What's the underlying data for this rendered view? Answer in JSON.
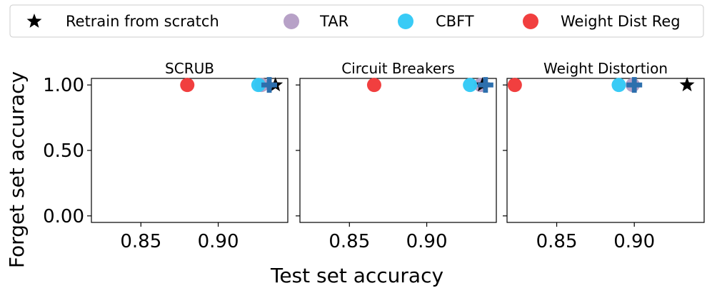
{
  "chart_data": [
    {
      "type": "scatter",
      "title": "SCRUB",
      "xticks": [
        0.85,
        0.9
      ],
      "xtick_labels": [
        "0.85",
        "0.90"
      ],
      "yticks": [
        0.0,
        0.5,
        1.0
      ],
      "ytick_labels": [
        "0.00",
        "0.50",
        "1.00"
      ],
      "xlim": [
        0.818,
        0.945
      ],
      "ylim": [
        -0.05,
        1.05
      ],
      "series": [
        {
          "name": "Retrain from scratch",
          "marker": "star",
          "color": "#000000",
          "points": [
            {
              "x": 0.937,
              "y": 1.0
            }
          ]
        },
        {
          "name": "TAR",
          "marker": "circle",
          "color": "#b39cc4",
          "points": [
            {
              "x": 0.928,
              "y": 1.0
            }
          ]
        },
        {
          "name": "CBFT",
          "marker": "circle",
          "color": "#2ec8f5",
          "points": [
            {
              "x": 0.926,
              "y": 1.0
            }
          ]
        },
        {
          "name": "Weight Dist Reg",
          "marker": "circle",
          "color": "#f03535",
          "points": [
            {
              "x": 0.88,
              "y": 1.0
            }
          ]
        },
        {
          "marker": "plus",
          "color": "#2d6fad",
          "points": [
            {
              "x": 0.933,
              "y": 1.0
            }
          ]
        }
      ]
    },
    {
      "type": "scatter",
      "title": "Circuit Breakers",
      "xticks": [
        0.85,
        0.9
      ],
      "xtick_labels": [
        "0.85",
        "0.90"
      ],
      "yticks": [
        0.0,
        0.5,
        1.0
      ],
      "ytick_labels": [
        "",
        "",
        ""
      ],
      "xlim": [
        0.818,
        0.945
      ],
      "ylim": [
        -0.05,
        1.05
      ],
      "series": [
        {
          "name": "TAR",
          "marker": "circle",
          "color": "#b39cc4",
          "points": [
            {
              "x": 0.935,
              "y": 1.0
            }
          ]
        },
        {
          "name": "Retrain from scratch",
          "marker": "star",
          "color": "#000000",
          "points": [
            {
              "x": 0.936,
              "y": 1.0
            }
          ]
        },
        {
          "name": "CBFT",
          "marker": "circle",
          "color": "#2ec8f5",
          "points": [
            {
              "x": 0.928,
              "y": 1.0
            }
          ]
        },
        {
          "name": "Weight Dist Reg",
          "marker": "circle",
          "color": "#f03535",
          "points": [
            {
              "x": 0.866,
              "y": 1.0
            }
          ]
        },
        {
          "marker": "plus",
          "color": "#2d6fad",
          "points": [
            {
              "x": 0.938,
              "y": 1.0
            }
          ]
        }
      ]
    },
    {
      "type": "scatter",
      "title": "Weight Distortion",
      "xticks": [
        0.85,
        0.9
      ],
      "xtick_labels": [
        "0.85",
        "0.90"
      ],
      "yticks": [
        0.0,
        0.5,
        1.0
      ],
      "ytick_labels": [
        "",
        "",
        ""
      ],
      "xlim": [
        0.818,
        0.945
      ],
      "ylim": [
        -0.05,
        1.05
      ],
      "series": [
        {
          "name": "Retrain from scratch",
          "marker": "star",
          "color": "#000000",
          "points": [
            {
              "x": 0.934,
              "y": 1.0
            }
          ]
        },
        {
          "name": "TAR",
          "marker": "circle",
          "color": "#b39cc4",
          "points": [
            {
              "x": 0.899,
              "y": 1.0
            }
          ]
        },
        {
          "name": "CBFT",
          "marker": "circle",
          "color": "#2ec8f5",
          "points": [
            {
              "x": 0.89,
              "y": 1.0
            }
          ]
        },
        {
          "name": "Weight Dist Reg",
          "marker": "circle",
          "color": "#f03535",
          "points": [
            {
              "x": 0.823,
              "y": 1.0
            }
          ]
        },
        {
          "marker": "plus",
          "color": "#2d6fad",
          "points": [
            {
              "x": 0.9,
              "y": 1.0
            }
          ]
        }
      ]
    }
  ],
  "legend": {
    "placement": "top",
    "items": [
      {
        "label": "Retrain from scratch",
        "marker": "star",
        "color": "#000000"
      },
      {
        "label": "TAR",
        "marker": "circle",
        "color": "#b39cc4"
      },
      {
        "label": "CBFT",
        "marker": "circle",
        "color": "#2ec8f5"
      },
      {
        "label": "Weight Dist Reg",
        "marker": "circle",
        "color": "#f03535"
      }
    ]
  },
  "xlabel": "Test set accuracy",
  "ylabel": "Forget set accuracy"
}
